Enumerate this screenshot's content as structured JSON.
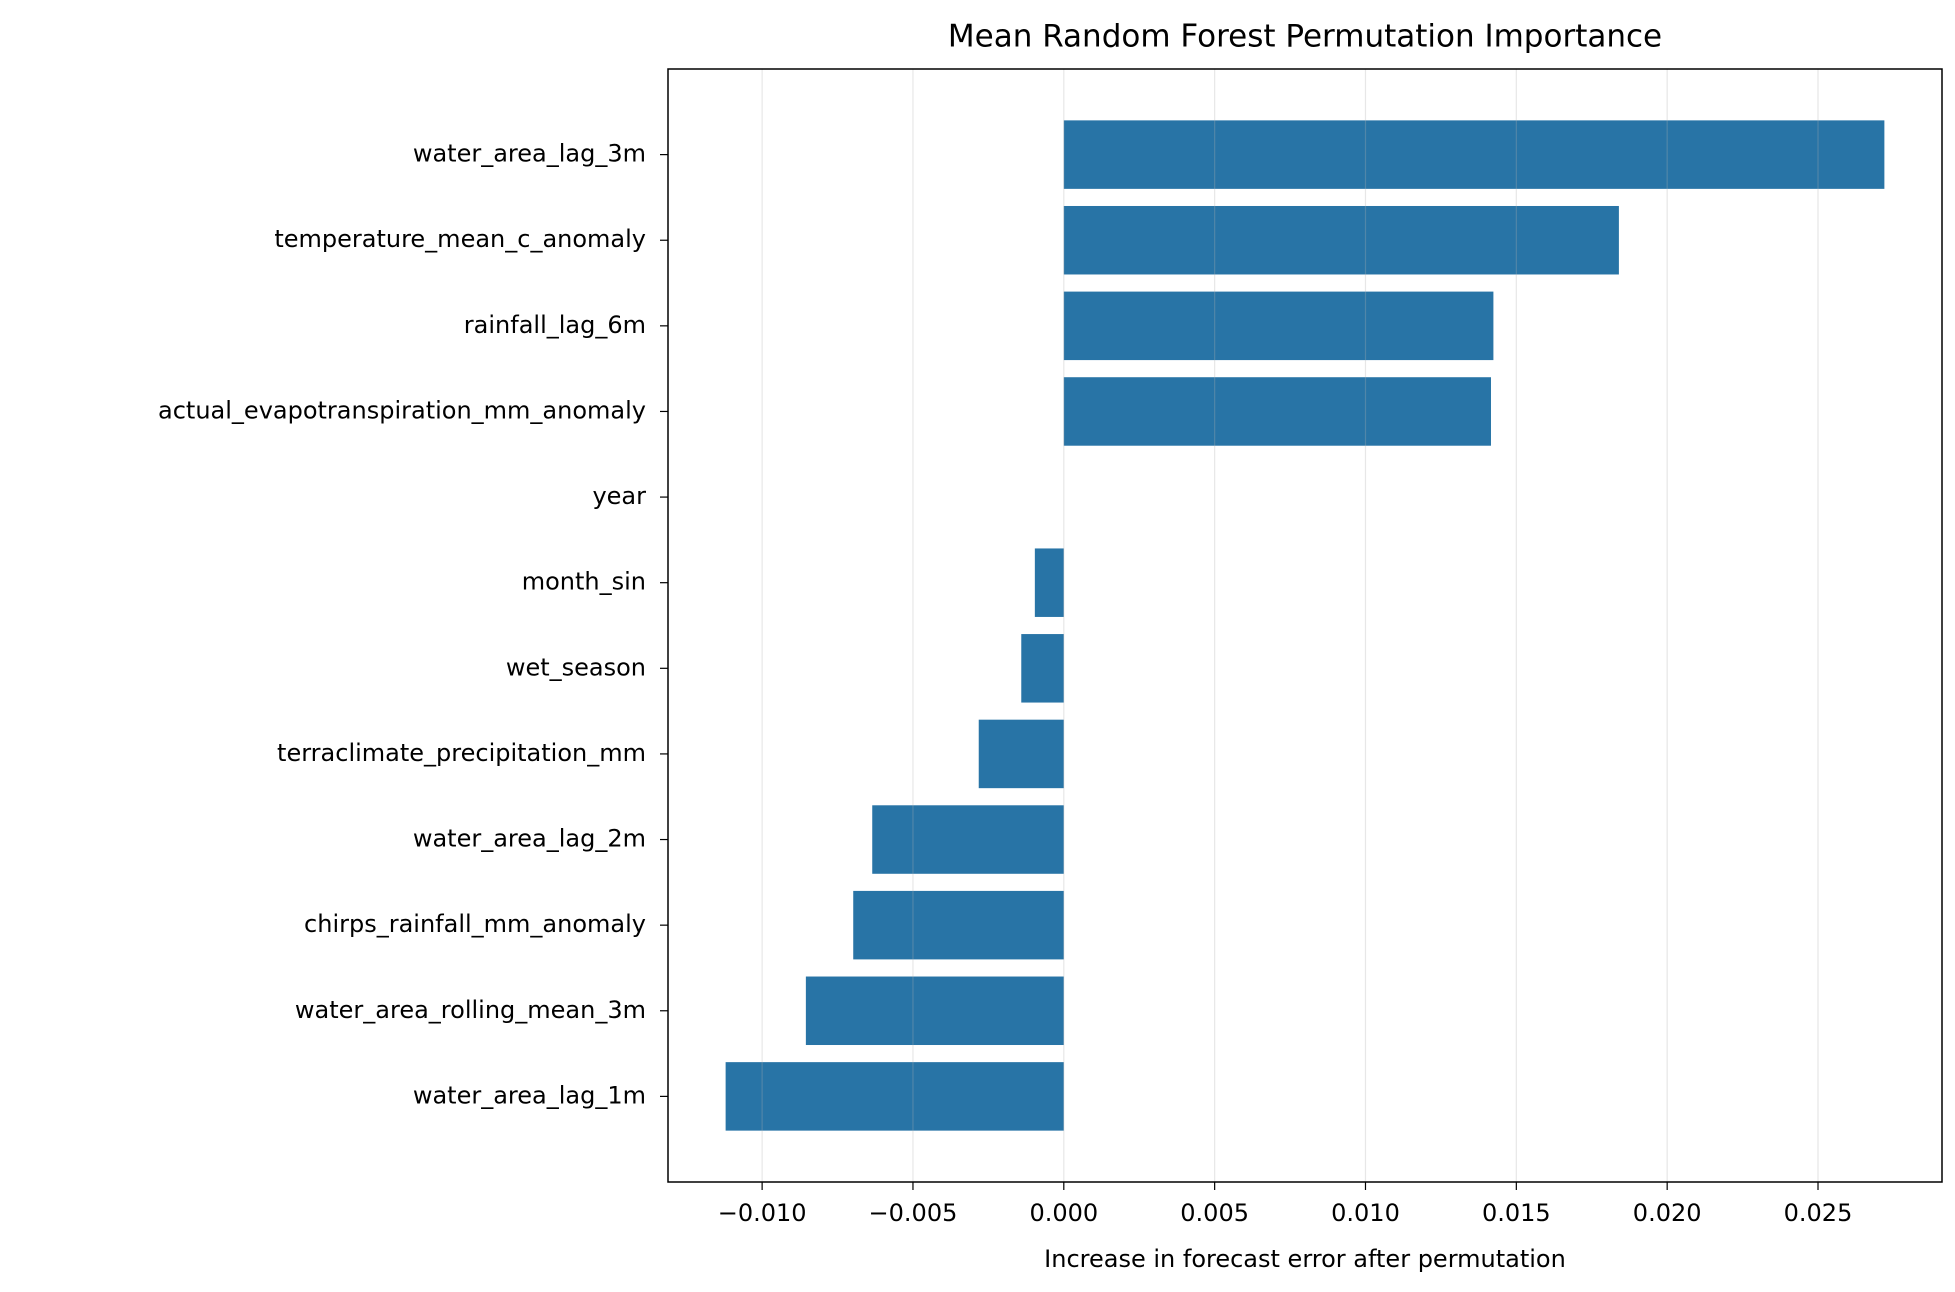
{
  "chart_data": {
    "type": "barh",
    "title": "Mean Random Forest Permutation Importance",
    "x_label": "Increase in forecast error after permutation",
    "categories": [
      "water_area_lag_3m",
      "temperature_mean_c_anomaly",
      "rainfall_lag_6m",
      "actual_evapotranspiration_mm_anomaly",
      "year",
      "month_sin",
      "wet_season",
      "terraclimate_precipitation_mm",
      "water_area_lag_2m",
      "chirps_rainfall_mm_anomaly",
      "water_area_rolling_mean_3m",
      "water_area_lag_1m"
    ],
    "values": [
      0.0272,
      0.0184,
      0.01424,
      0.01416,
      0,
      -0.00096,
      -0.00141,
      -0.00282,
      -0.00635,
      -0.00698,
      -0.00855,
      -0.01121
    ],
    "color": "#2874a6",
    "xlim": [
      -0.01312,
      0.02911
    ],
    "xticks": [
      {
        "value": -0.01,
        "label": "−0.010"
      },
      {
        "value": -0.005,
        "label": "−0.005"
      },
      {
        "value": 0,
        "label": "0.000"
      },
      {
        "value": 0.005,
        "label": "0.005"
      },
      {
        "value": 0.01,
        "label": "0.010"
      },
      {
        "value": 0.015,
        "label": "0.015"
      },
      {
        "value": 0.02,
        "label": "0.020"
      },
      {
        "value": 0.025,
        "label": "0.025"
      }
    ],
    "grid": true
  }
}
